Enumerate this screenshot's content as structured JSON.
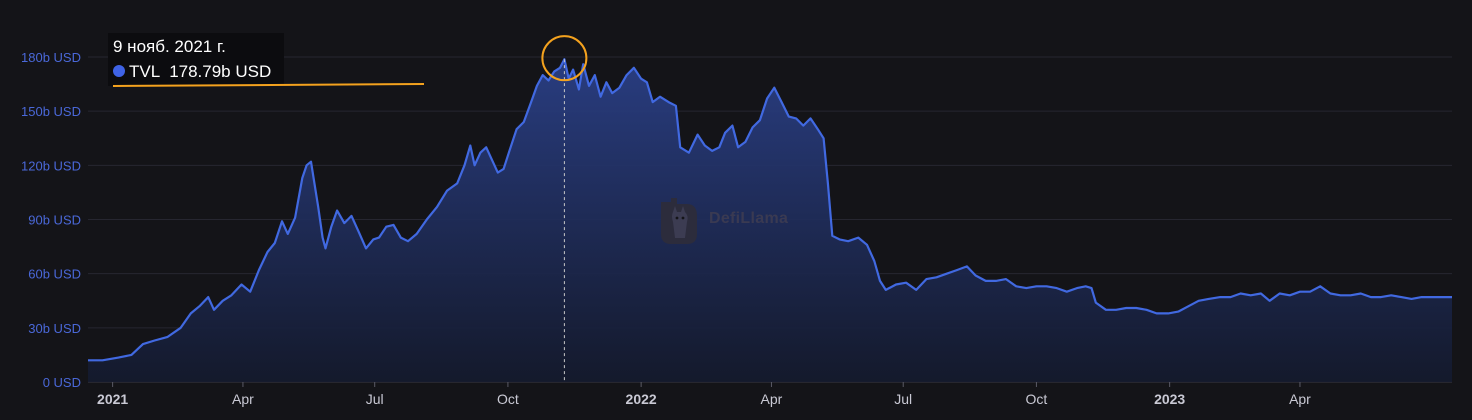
{
  "colors": {
    "background": "#141418",
    "line": "#4169e1",
    "area_top": "#2a3f86",
    "area_bottom": "#141a2e",
    "grid": "#262630",
    "y_tick_text": "#4a68d8",
    "x_tick_text": "#c9c9d4",
    "annotation": "#f4a21e",
    "crosshair": "#c8c8c8"
  },
  "tooltip": {
    "date": "9 нояб. 2021 г.",
    "series_label": "TVL",
    "value_text": "178.79b USD",
    "dot_color": "#3f63e6"
  },
  "watermark": {
    "text": "DefiLlama",
    "icon": "llama-logo-icon"
  },
  "chart_data": {
    "type": "area",
    "title": "",
    "xlabel": "",
    "ylabel": "",
    "y_unit": "USD",
    "ylim": [
      0,
      180
    ],
    "y_ticks": [
      0,
      30,
      60,
      90,
      120,
      150,
      180
    ],
    "y_tick_labels": [
      "0 USD",
      "30b USD",
      "60b USD",
      "90b USD",
      "120b USD",
      "150b USD",
      "180b USD"
    ],
    "xlim": [
      "2020-12-15",
      "2023-07-15"
    ],
    "x_ticks": [
      {
        "date": "2021-01-01",
        "label": "2021",
        "bold": true
      },
      {
        "date": "2021-04-01",
        "label": "Apr",
        "bold": false
      },
      {
        "date": "2021-07-01",
        "label": "Jul",
        "bold": false
      },
      {
        "date": "2021-10-01",
        "label": "Oct",
        "bold": false
      },
      {
        "date": "2022-01-01",
        "label": "2022",
        "bold": true
      },
      {
        "date": "2022-04-01",
        "label": "Apr",
        "bold": false
      },
      {
        "date": "2022-07-01",
        "label": "Jul",
        "bold": false
      },
      {
        "date": "2022-10-01",
        "label": "Oct",
        "bold": false
      },
      {
        "date": "2023-01-01",
        "label": "2023",
        "bold": true
      },
      {
        "date": "2023-04-01",
        "label": "Apr",
        "bold": false
      }
    ],
    "grid": true,
    "highlight": {
      "date": "2021-11-09",
      "value": 178.79
    },
    "series": [
      {
        "name": "TVL",
        "points": [
          [
            "2020-12-15",
            12
          ],
          [
            "2020-12-25",
            12
          ],
          [
            "2021-01-05",
            13.5
          ],
          [
            "2021-01-14",
            15
          ],
          [
            "2021-01-22",
            21
          ],
          [
            "2021-01-30",
            23
          ],
          [
            "2021-02-08",
            25
          ],
          [
            "2021-02-17",
            30
          ],
          [
            "2021-02-24",
            38
          ],
          [
            "2021-03-02",
            42
          ],
          [
            "2021-03-08",
            47
          ],
          [
            "2021-03-12",
            40
          ],
          [
            "2021-03-18",
            45
          ],
          [
            "2021-03-24",
            48
          ],
          [
            "2021-03-31",
            54
          ],
          [
            "2021-04-06",
            50
          ],
          [
            "2021-04-12",
            62
          ],
          [
            "2021-04-18",
            72
          ],
          [
            "2021-04-23",
            77
          ],
          [
            "2021-04-28",
            89
          ],
          [
            "2021-05-02",
            82
          ],
          [
            "2021-05-07",
            91
          ],
          [
            "2021-05-12",
            113
          ],
          [
            "2021-05-15",
            120
          ],
          [
            "2021-05-18",
            122
          ],
          [
            "2021-05-21",
            107
          ],
          [
            "2021-05-23",
            97
          ],
          [
            "2021-05-26",
            80
          ],
          [
            "2021-05-28",
            74
          ],
          [
            "2021-06-01",
            86
          ],
          [
            "2021-06-05",
            95
          ],
          [
            "2021-06-10",
            88
          ],
          [
            "2021-06-15",
            92
          ],
          [
            "2021-06-20",
            83
          ],
          [
            "2021-06-25",
            74
          ],
          [
            "2021-06-30",
            79
          ],
          [
            "2021-07-04",
            80
          ],
          [
            "2021-07-09",
            86
          ],
          [
            "2021-07-14",
            87
          ],
          [
            "2021-07-19",
            80
          ],
          [
            "2021-07-24",
            78
          ],
          [
            "2021-07-30",
            82
          ],
          [
            "2021-08-06",
            90
          ],
          [
            "2021-08-13",
            97
          ],
          [
            "2021-08-20",
            106
          ],
          [
            "2021-08-27",
            110
          ],
          [
            "2021-09-01",
            120
          ],
          [
            "2021-09-05",
            131
          ],
          [
            "2021-09-08",
            120
          ],
          [
            "2021-09-12",
            127
          ],
          [
            "2021-09-16",
            130
          ],
          [
            "2021-09-20",
            123
          ],
          [
            "2021-09-24",
            116
          ],
          [
            "2021-09-28",
            118
          ],
          [
            "2021-10-02",
            128
          ],
          [
            "2021-10-07",
            140
          ],
          [
            "2021-10-12",
            144
          ],
          [
            "2021-10-17",
            155
          ],
          [
            "2021-10-21",
            164
          ],
          [
            "2021-10-25",
            170
          ],
          [
            "2021-10-29",
            167
          ],
          [
            "2021-11-02",
            172
          ],
          [
            "2021-11-06",
            174
          ],
          [
            "2021-11-09",
            178.79
          ],
          [
            "2021-11-12",
            168
          ],
          [
            "2021-11-15",
            173
          ],
          [
            "2021-11-19",
            162
          ],
          [
            "2021-11-22",
            176
          ],
          [
            "2021-11-26",
            164
          ],
          [
            "2021-11-30",
            170
          ],
          [
            "2021-12-04",
            158
          ],
          [
            "2021-12-08",
            166
          ],
          [
            "2021-12-12",
            160
          ],
          [
            "2021-12-17",
            163
          ],
          [
            "2021-12-22",
            170
          ],
          [
            "2021-12-27",
            174
          ],
          [
            "2022-01-01",
            168
          ],
          [
            "2022-01-05",
            166
          ],
          [
            "2022-01-09",
            155
          ],
          [
            "2022-01-14",
            158
          ],
          [
            "2022-01-20",
            155
          ],
          [
            "2022-01-25",
            153
          ],
          [
            "2022-01-28",
            130
          ],
          [
            "2022-02-03",
            127
          ],
          [
            "2022-02-09",
            137
          ],
          [
            "2022-02-14",
            131
          ],
          [
            "2022-02-19",
            128
          ],
          [
            "2022-02-24",
            130
          ],
          [
            "2022-02-28",
            138
          ],
          [
            "2022-03-05",
            142
          ],
          [
            "2022-03-09",
            130
          ],
          [
            "2022-03-14",
            133
          ],
          [
            "2022-03-19",
            141
          ],
          [
            "2022-03-24",
            145
          ],
          [
            "2022-03-29",
            157
          ],
          [
            "2022-04-03",
            163
          ],
          [
            "2022-04-08",
            155
          ],
          [
            "2022-04-13",
            147
          ],
          [
            "2022-04-18",
            146
          ],
          [
            "2022-04-23",
            142
          ],
          [
            "2022-04-28",
            146
          ],
          [
            "2022-05-03",
            140
          ],
          [
            "2022-05-07",
            135
          ],
          [
            "2022-05-10",
            110
          ],
          [
            "2022-05-13",
            81
          ],
          [
            "2022-05-18",
            79
          ],
          [
            "2022-05-24",
            78
          ],
          [
            "2022-05-31",
            80
          ],
          [
            "2022-06-06",
            76
          ],
          [
            "2022-06-11",
            67
          ],
          [
            "2022-06-15",
            56
          ],
          [
            "2022-06-19",
            51
          ],
          [
            "2022-06-26",
            54
          ],
          [
            "2022-07-03",
            55
          ],
          [
            "2022-07-10",
            51
          ],
          [
            "2022-07-17",
            57
          ],
          [
            "2022-07-24",
            58
          ],
          [
            "2022-07-31",
            60
          ],
          [
            "2022-08-07",
            62
          ],
          [
            "2022-08-14",
            64
          ],
          [
            "2022-08-20",
            59
          ],
          [
            "2022-08-27",
            56
          ],
          [
            "2022-09-03",
            56
          ],
          [
            "2022-09-10",
            57
          ],
          [
            "2022-09-17",
            53
          ],
          [
            "2022-09-24",
            52
          ],
          [
            "2022-10-01",
            53
          ],
          [
            "2022-10-08",
            53
          ],
          [
            "2022-10-15",
            52
          ],
          [
            "2022-10-22",
            50
          ],
          [
            "2022-10-29",
            52
          ],
          [
            "2022-11-04",
            53
          ],
          [
            "2022-11-08",
            52
          ],
          [
            "2022-11-11",
            44
          ],
          [
            "2022-11-18",
            40
          ],
          [
            "2022-11-25",
            40
          ],
          [
            "2022-12-02",
            41
          ],
          [
            "2022-12-09",
            41
          ],
          [
            "2022-12-16",
            40
          ],
          [
            "2022-12-23",
            38
          ],
          [
            "2022-12-31",
            38
          ],
          [
            "2023-01-07",
            39
          ],
          [
            "2023-01-14",
            42
          ],
          [
            "2023-01-21",
            45
          ],
          [
            "2023-01-28",
            46
          ],
          [
            "2023-02-05",
            47
          ],
          [
            "2023-02-12",
            47
          ],
          [
            "2023-02-19",
            49
          ],
          [
            "2023-02-26",
            48
          ],
          [
            "2023-03-05",
            49
          ],
          [
            "2023-03-11",
            45
          ],
          [
            "2023-03-18",
            49
          ],
          [
            "2023-03-25",
            48
          ],
          [
            "2023-04-01",
            50
          ],
          [
            "2023-04-08",
            50
          ],
          [
            "2023-04-15",
            53
          ],
          [
            "2023-04-22",
            49
          ],
          [
            "2023-04-29",
            48
          ],
          [
            "2023-05-06",
            48
          ],
          [
            "2023-05-13",
            49
          ],
          [
            "2023-05-20",
            47
          ],
          [
            "2023-05-27",
            47
          ],
          [
            "2023-06-03",
            48
          ],
          [
            "2023-06-10",
            47
          ],
          [
            "2023-06-17",
            46
          ],
          [
            "2023-06-24",
            47
          ],
          [
            "2023-07-01",
            47
          ],
          [
            "2023-07-08",
            47
          ],
          [
            "2023-07-15",
            47
          ]
        ]
      }
    ]
  }
}
